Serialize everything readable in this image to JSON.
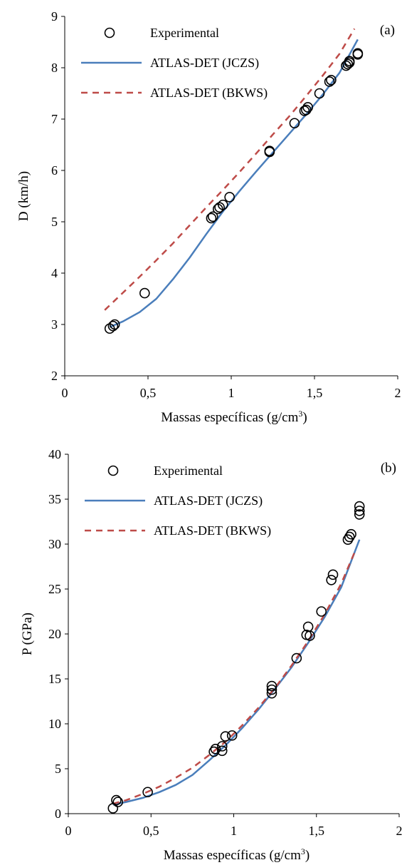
{
  "colors": {
    "jczs": "#4a7ebb",
    "bkws": "#be4b48",
    "marker_edge": "#000000",
    "axis": "#000000"
  },
  "chart_data": [
    {
      "type": "scatter",
      "panel_label": "(a)",
      "xlabel": "Massas específicas (g/cm",
      "xlabel_sup": "3",
      "xlabel_end": ")",
      "ylabel": "D (km/h)",
      "xlim": [
        0,
        2
      ],
      "ylim": [
        2,
        9
      ],
      "x_ticks": [
        0,
        0.5,
        1,
        1.5,
        2
      ],
      "x_tick_labels": [
        "0",
        "0,5",
        "1",
        "1,5",
        "2"
      ],
      "y_ticks": [
        2,
        3,
        4,
        5,
        6,
        7,
        8,
        9
      ],
      "y_tick_labels": [
        "2",
        "3",
        "4",
        "5",
        "6",
        "7",
        "8",
        "9"
      ],
      "grid": false,
      "legend_position": "top-left",
      "series": [
        {
          "name": "Experimental",
          "kind": "markers",
          "marker": "open-circle",
          "points": [
            [
              0.27,
              2.92
            ],
            [
              0.29,
              2.97
            ],
            [
              0.3,
              3.0
            ],
            [
              0.48,
              3.61
            ],
            [
              0.88,
              5.07
            ],
            [
              0.89,
              5.1
            ],
            [
              0.92,
              5.25
            ],
            [
              0.93,
              5.28
            ],
            [
              0.95,
              5.33
            ],
            [
              0.99,
              5.48
            ],
            [
              1.23,
              6.36
            ],
            [
              1.23,
              6.38
            ],
            [
              1.38,
              6.92
            ],
            [
              1.44,
              7.16
            ],
            [
              1.45,
              7.18
            ],
            [
              1.46,
              7.23
            ],
            [
              1.53,
              7.5
            ],
            [
              1.59,
              7.73
            ],
            [
              1.6,
              7.76
            ],
            [
              1.69,
              8.04
            ],
            [
              1.7,
              8.07
            ],
            [
              1.71,
              8.1
            ],
            [
              1.71,
              8.13
            ],
            [
              1.76,
              8.26
            ],
            [
              1.76,
              8.28
            ]
          ]
        },
        {
          "name": "ATLAS-DET (JCZS)",
          "kind": "line",
          "dash": "solid",
          "points": [
            [
              0.27,
              2.95
            ],
            [
              0.35,
              3.06
            ],
            [
              0.45,
              3.24
            ],
            [
              0.55,
              3.5
            ],
            [
              0.65,
              3.88
            ],
            [
              0.75,
              4.3
            ],
            [
              0.85,
              4.76
            ],
            [
              0.95,
              5.2
            ],
            [
              1.05,
              5.6
            ],
            [
              1.15,
              5.98
            ],
            [
              1.25,
              6.35
            ],
            [
              1.35,
              6.72
            ],
            [
              1.45,
              7.09
            ],
            [
              1.55,
              7.48
            ],
            [
              1.65,
              7.9
            ],
            [
              1.76,
              8.55
            ]
          ]
        },
        {
          "name": "ATLAS-DET (BKWS)",
          "kind": "line",
          "dash": "dashed",
          "points": [
            [
              0.24,
              3.28
            ],
            [
              0.35,
              3.62
            ],
            [
              0.45,
              3.93
            ],
            [
              0.55,
              4.25
            ],
            [
              0.65,
              4.58
            ],
            [
              0.75,
              4.93
            ],
            [
              0.85,
              5.28
            ],
            [
              0.95,
              5.62
            ],
            [
              1.05,
              5.97
            ],
            [
              1.15,
              6.33
            ],
            [
              1.25,
              6.7
            ],
            [
              1.35,
              7.06
            ],
            [
              1.45,
              7.45
            ],
            [
              1.55,
              7.85
            ],
            [
              1.65,
              8.27
            ],
            [
              1.74,
              8.76
            ]
          ]
        }
      ]
    },
    {
      "type": "scatter",
      "panel_label": "(b)",
      "xlabel": "Massas específicas (g/cm",
      "xlabel_sup": "3",
      "xlabel_end": ")",
      "ylabel": "P (GPa)",
      "xlim": [
        0,
        2
      ],
      "ylim": [
        0,
        40
      ],
      "x_ticks": [
        0,
        0.5,
        1,
        1.5,
        2
      ],
      "x_tick_labels": [
        "0",
        "0,5",
        "1",
        "1,5",
        "2"
      ],
      "y_ticks": [
        0,
        5,
        10,
        15,
        20,
        25,
        30,
        35,
        40
      ],
      "y_tick_labels": [
        "0",
        "5",
        "10",
        "15",
        "20",
        "25",
        "30",
        "35",
        "40"
      ],
      "grid": false,
      "legend_position": "top-left",
      "series": [
        {
          "name": "Experimental",
          "kind": "markers",
          "marker": "open-circle",
          "points": [
            [
              0.27,
              0.6
            ],
            [
              0.29,
              1.5
            ],
            [
              0.3,
              1.3
            ],
            [
              0.48,
              2.4
            ],
            [
              0.88,
              6.9
            ],
            [
              0.89,
              7.2
            ],
            [
              0.93,
              7.0
            ],
            [
              0.93,
              7.5
            ],
            [
              0.95,
              8.6
            ],
            [
              0.99,
              8.7
            ],
            [
              1.23,
              13.4
            ],
            [
              1.23,
              13.8
            ],
            [
              1.23,
              14.2
            ],
            [
              1.38,
              17.3
            ],
            [
              1.44,
              19.9
            ],
            [
              1.45,
              20.8
            ],
            [
              1.46,
              19.8
            ],
            [
              1.53,
              22.5
            ],
            [
              1.59,
              26.0
            ],
            [
              1.6,
              26.6
            ],
            [
              1.69,
              30.5
            ],
            [
              1.7,
              30.8
            ],
            [
              1.71,
              31.1
            ],
            [
              1.76,
              33.3
            ],
            [
              1.76,
              33.7
            ],
            [
              1.76,
              34.2
            ]
          ]
        },
        {
          "name": "ATLAS-DET (JCZS)",
          "kind": "line",
          "dash": "solid",
          "points": [
            [
              0.27,
              1.0
            ],
            [
              0.35,
              1.3
            ],
            [
              0.45,
              1.75
            ],
            [
              0.55,
              2.4
            ],
            [
              0.65,
              3.2
            ],
            [
              0.75,
              4.3
            ],
            [
              0.85,
              5.9
            ],
            [
              0.95,
              7.6
            ],
            [
              1.05,
              9.5
            ],
            [
              1.15,
              11.6
            ],
            [
              1.25,
              13.9
            ],
            [
              1.35,
              16.3
            ],
            [
              1.45,
              19.0
            ],
            [
              1.55,
              21.9
            ],
            [
              1.65,
              25.2
            ],
            [
              1.76,
              30.5
            ]
          ]
        },
        {
          "name": "ATLAS-DET (BKWS)",
          "kind": "line",
          "dash": "dashed",
          "points": [
            [
              0.27,
              1.1
            ],
            [
              0.35,
              1.5
            ],
            [
              0.45,
              2.2
            ],
            [
              0.55,
              3.0
            ],
            [
              0.65,
              4.0
            ],
            [
              0.75,
              5.1
            ],
            [
              0.85,
              6.5
            ],
            [
              0.95,
              8.0
            ],
            [
              1.05,
              9.8
            ],
            [
              1.15,
              11.8
            ],
            [
              1.25,
              14.0
            ],
            [
              1.35,
              16.5
            ],
            [
              1.45,
              19.2
            ],
            [
              1.55,
              22.2
            ],
            [
              1.65,
              25.6
            ],
            [
              1.74,
              29.5
            ]
          ]
        }
      ]
    }
  ]
}
